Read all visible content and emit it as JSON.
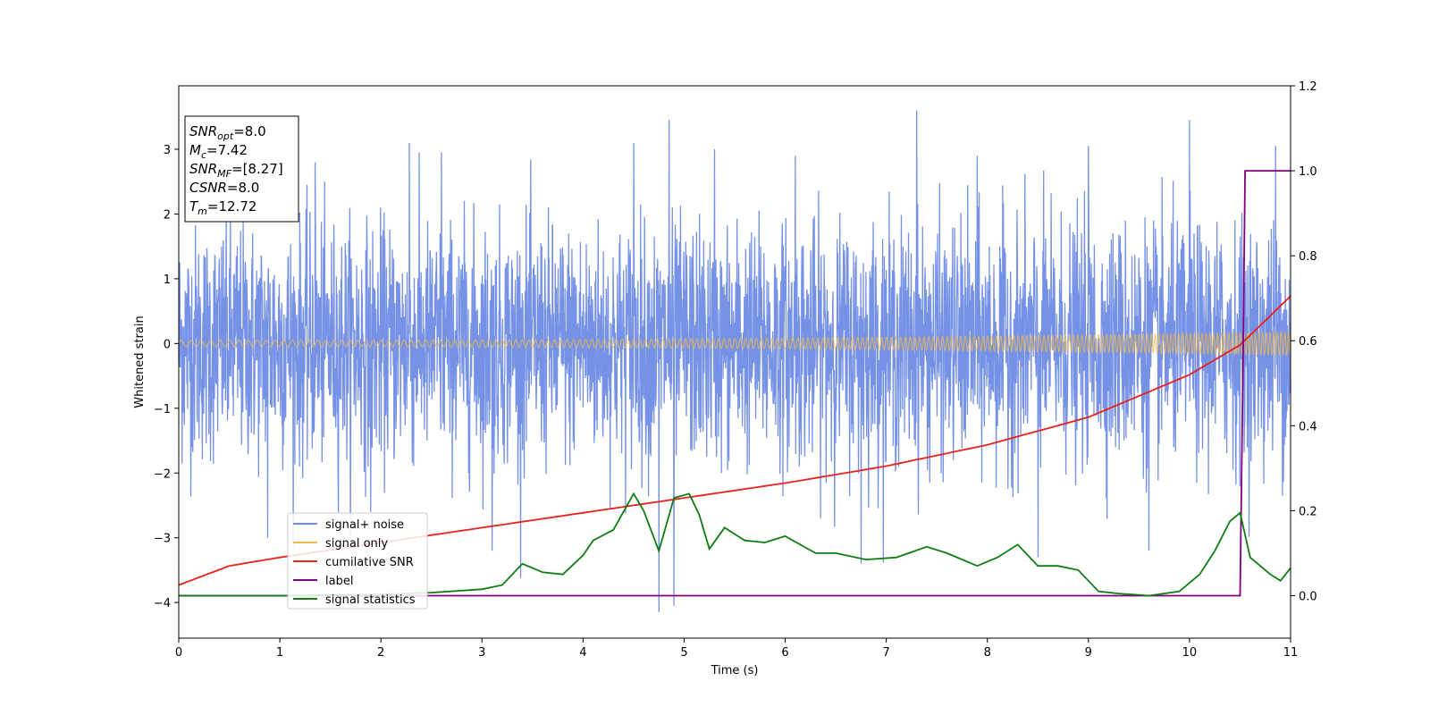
{
  "chart_data": {
    "type": "line",
    "title": "",
    "xlabel": "Time (s)",
    "ylabel": "Whitened strain",
    "xlim": [
      0,
      11
    ],
    "ylim": [
      -4.55,
      3.98
    ],
    "y2lim": [
      -0.1,
      1.2
    ],
    "xticks": [
      0,
      1,
      2,
      3,
      4,
      5,
      6,
      7,
      8,
      9,
      10,
      11
    ],
    "yticks": [
      -4,
      -3,
      -2,
      -1,
      0,
      1,
      2,
      3
    ],
    "yticks_right": [
      0.0,
      0.2,
      0.4,
      0.6,
      0.8,
      1.0,
      1.2
    ],
    "grid": false,
    "legend_position": "lower-left",
    "series": [
      {
        "name": "signal+ noise",
        "axis": "left",
        "color": "#6f8ce6",
        "kind": "noise",
        "typical_range": [
          -1.8,
          1.8
        ],
        "extremes": [
          {
            "x": 0.88,
            "y": -3.0
          },
          {
            "x": 1.35,
            "y": 2.8
          },
          {
            "x": 1.9,
            "y": -2.6
          },
          {
            "x": 2.28,
            "y": 3.1
          },
          {
            "x": 2.6,
            "y": 2.95
          },
          {
            "x": 3.1,
            "y": -3.2
          },
          {
            "x": 4.5,
            "y": 3.1
          },
          {
            "x": 4.75,
            "y": -4.15
          },
          {
            "x": 4.85,
            "y": 3.45
          },
          {
            "x": 4.9,
            "y": -4.05
          },
          {
            "x": 5.3,
            "y": 3.0
          },
          {
            "x": 6.1,
            "y": 2.9
          },
          {
            "x": 6.75,
            "y": -3.4
          },
          {
            "x": 7.3,
            "y": 3.6
          },
          {
            "x": 7.9,
            "y": 2.9
          },
          {
            "x": 8.5,
            "y": -3.3
          },
          {
            "x": 9.0,
            "y": 3.05
          },
          {
            "x": 9.6,
            "y": -3.2
          },
          {
            "x": 10.0,
            "y": 3.45
          },
          {
            "x": 10.85,
            "y": 3.05
          }
        ]
      },
      {
        "name": "signal only",
        "axis": "left",
        "color": "#f4b942",
        "kind": "chirp",
        "amplitude_start": 0.05,
        "amplitude_end": 0.18
      },
      {
        "name": "cumilative SNR",
        "axis": "right",
        "color": "#e8211c",
        "x": [
          0,
          0.5,
          1,
          2,
          3,
          4,
          5,
          6,
          7,
          8,
          9,
          10,
          10.5,
          11
        ],
        "y": [
          0.025,
          0.07,
          0.09,
          0.125,
          0.16,
          0.195,
          0.23,
          0.265,
          0.305,
          0.355,
          0.42,
          0.52,
          0.59,
          0.705
        ]
      },
      {
        "name": "label",
        "axis": "right",
        "color": "#800080",
        "x": [
          0,
          10.5,
          10.53,
          10.55,
          11
        ],
        "y": [
          0,
          0,
          0.55,
          1.0,
          1.0
        ]
      },
      {
        "name": "signal statistics",
        "axis": "right",
        "color": "#0f7d12",
        "x": [
          0,
          1,
          2,
          2.5,
          3,
          3.2,
          3.4,
          3.6,
          3.8,
          4.0,
          4.1,
          4.3,
          4.5,
          4.6,
          4.75,
          4.9,
          5.05,
          5.15,
          5.25,
          5.4,
          5.6,
          5.8,
          6.0,
          6.3,
          6.5,
          6.8,
          7.1,
          7.4,
          7.6,
          7.9,
          8.1,
          8.3,
          8.5,
          8.7,
          8.9,
          9.1,
          9.3,
          9.6,
          9.9,
          10.1,
          10.25,
          10.4,
          10.5,
          10.6,
          10.7,
          10.8,
          10.9,
          11.0
        ],
        "y": [
          0,
          0.0,
          0.003,
          0.007,
          0.015,
          0.025,
          0.075,
          0.055,
          0.05,
          0.095,
          0.13,
          0.155,
          0.24,
          0.2,
          0.105,
          0.23,
          0.24,
          0.19,
          0.11,
          0.16,
          0.13,
          0.125,
          0.14,
          0.1,
          0.1,
          0.085,
          0.09,
          0.115,
          0.1,
          0.07,
          0.09,
          0.12,
          0.07,
          0.07,
          0.06,
          0.01,
          0.005,
          0.0,
          0.01,
          0.05,
          0.105,
          0.175,
          0.195,
          0.09,
          0.07,
          0.05,
          0.035,
          0.065
        ]
      }
    ],
    "info_box": [
      {
        "symbol": "SNR",
        "sub": "opt",
        "value": "=8.0"
      },
      {
        "symbol": "M",
        "sub": "c",
        "value": "=7.42"
      },
      {
        "symbol": "SNR",
        "sub": "MF",
        "value": "=[8.27]"
      },
      {
        "symbol": "CSNR",
        "sub": "",
        "value": "=8.0"
      },
      {
        "symbol": "T",
        "sub": "m",
        "value": "=12.72"
      }
    ]
  }
}
